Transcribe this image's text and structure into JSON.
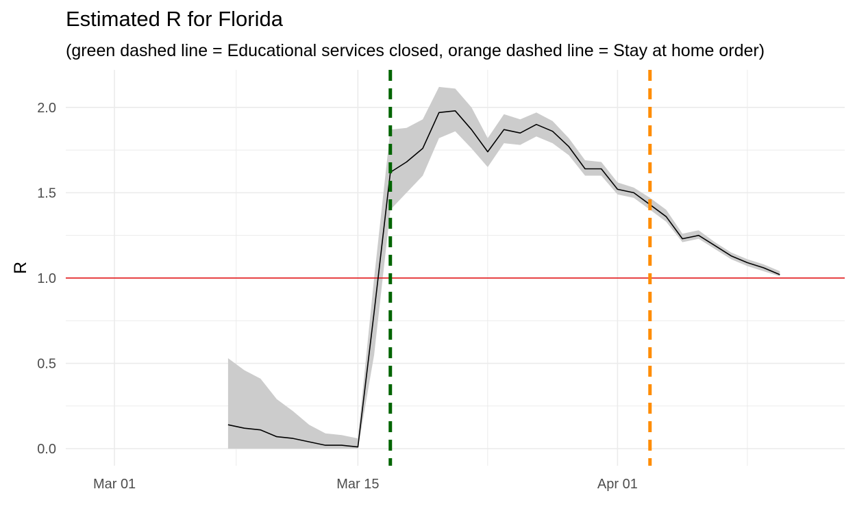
{
  "chart_data": {
    "type": "line",
    "title": "Estimated R for Florida",
    "subtitle": "(green dashed line = Educational services closed, orange dashed line = Stay at home order)",
    "ylabel": "R",
    "xlabel": "",
    "ylim": [
      -0.1,
      2.22
    ],
    "xlim": [
      "2020-02-27",
      "2020-04-15"
    ],
    "y_ticks": [
      0.0,
      0.5,
      1.0,
      1.5,
      2.0
    ],
    "y_tick_labels": [
      "0.0",
      "0.5",
      "1.0",
      "1.5",
      "2.0"
    ],
    "x_ticks": [
      "2020-03-01",
      "2020-03-16",
      "2020-04-01"
    ],
    "x_tick_labels": [
      "Mar 01",
      "Mar 15",
      "Apr 01"
    ],
    "grid": true,
    "colors": {
      "line": "#000000",
      "ribbon": "#cccccc",
      "reference": "#e41a1c",
      "grid": "#ebebeb",
      "educational_closure": "#006400",
      "stay_at_home": "#ff8c00"
    },
    "reference_line": {
      "y": 1.0
    },
    "events": [
      {
        "name": "Educational services closed",
        "date": "2020-03-18",
        "color": "#006400"
      },
      {
        "name": "Stay at home order",
        "date": "2020-04-03",
        "color": "#ff8c00"
      }
    ],
    "series": [
      {
        "x": [
          "2020-03-08",
          "2020-03-09",
          "2020-03-10",
          "2020-03-11",
          "2020-03-12",
          "2020-03-13",
          "2020-03-14",
          "2020-03-15",
          "2020-03-16",
          "2020-03-17",
          "2020-03-18",
          "2020-03-19",
          "2020-03-20",
          "2020-03-21",
          "2020-03-22",
          "2020-03-23",
          "2020-03-24",
          "2020-03-25",
          "2020-03-26",
          "2020-03-27",
          "2020-03-28",
          "2020-03-29",
          "2020-03-30",
          "2020-03-31",
          "2020-04-01",
          "2020-04-02",
          "2020-04-03",
          "2020-04-04",
          "2020-04-05",
          "2020-04-06",
          "2020-04-07",
          "2020-04-08",
          "2020-04-09",
          "2020-04-10",
          "2020-04-11"
        ],
        "values": [
          0.14,
          0.12,
          0.11,
          0.07,
          0.06,
          0.04,
          0.02,
          0.02,
          0.01,
          0.8,
          1.62,
          1.68,
          1.76,
          1.97,
          1.98,
          1.87,
          1.74,
          1.87,
          1.85,
          1.9,
          1.86,
          1.77,
          1.64,
          1.64,
          1.52,
          1.5,
          1.43,
          1.36,
          1.23,
          1.25,
          1.19,
          1.13,
          1.09,
          1.06,
          1.02
        ],
        "lower": [
          0.0,
          0.0,
          0.0,
          0.0,
          0.0,
          0.0,
          0.0,
          0.0,
          0.0,
          0.55,
          1.4,
          1.5,
          1.6,
          1.82,
          1.86,
          1.76,
          1.65,
          1.79,
          1.78,
          1.83,
          1.79,
          1.72,
          1.6,
          1.6,
          1.49,
          1.47,
          1.4,
          1.33,
          1.21,
          1.23,
          1.17,
          1.11,
          1.07,
          1.04,
          1.01
        ],
        "upper": [
          0.53,
          0.46,
          0.41,
          0.29,
          0.22,
          0.14,
          0.09,
          0.08,
          0.06,
          1.0,
          1.87,
          1.88,
          1.93,
          2.12,
          2.11,
          2.0,
          1.82,
          1.96,
          1.93,
          1.97,
          1.92,
          1.82,
          1.69,
          1.68,
          1.56,
          1.53,
          1.47,
          1.4,
          1.26,
          1.28,
          1.21,
          1.15,
          1.11,
          1.08,
          1.04
        ]
      }
    ]
  }
}
